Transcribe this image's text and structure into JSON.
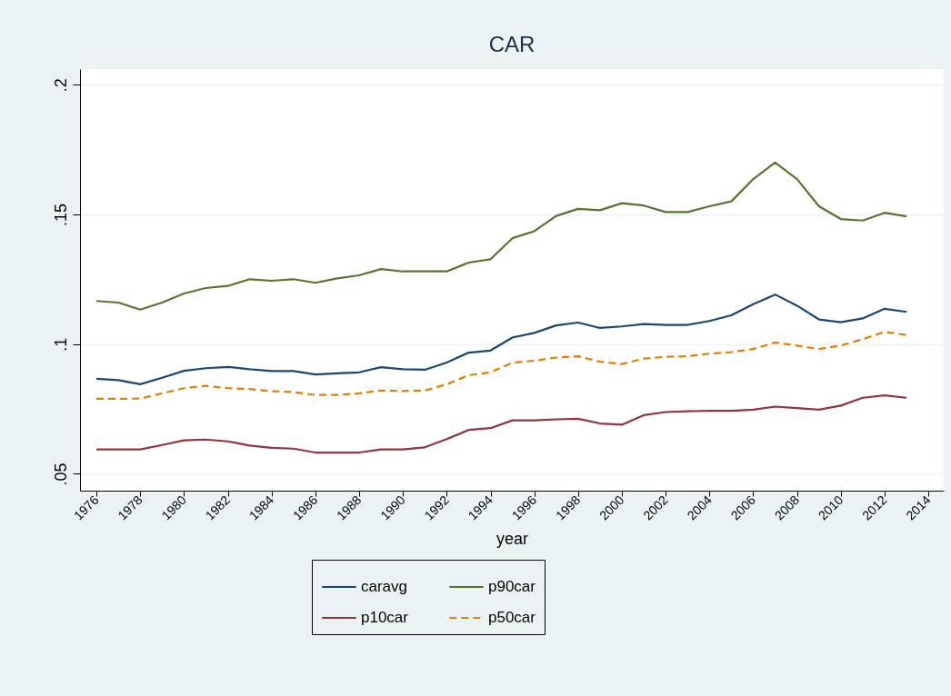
{
  "chart_data": {
    "type": "line",
    "title": "CAR",
    "xlabel": "year",
    "x": [
      1976,
      1977,
      1978,
      1979,
      1980,
      1981,
      1982,
      1983,
      1984,
      1985,
      1986,
      1987,
      1988,
      1989,
      1990,
      1991,
      1992,
      1993,
      1994,
      1995,
      1996,
      1997,
      1998,
      1999,
      2000,
      2001,
      2002,
      2003,
      2004,
      2005,
      2006,
      2007,
      2008,
      2009,
      2010,
      2011,
      2012,
      2013
    ],
    "series": [
      {
        "name": "caravg",
        "color": "#1a476f",
        "values": [
          0.0866,
          0.0861,
          0.0845,
          0.087,
          0.0897,
          0.0907,
          0.0912,
          0.0903,
          0.0896,
          0.0896,
          0.0883,
          0.0887,
          0.0891,
          0.0911,
          0.0903,
          0.0901,
          0.0929,
          0.0967,
          0.0975,
          0.1025,
          0.1043,
          0.1072,
          0.1083,
          0.1062,
          0.1068,
          0.1077,
          0.1074,
          0.1074,
          0.1089,
          0.1111,
          0.1154,
          0.1191,
          0.1148,
          0.1095,
          0.1084,
          0.1099,
          0.1136,
          0.1124
        ]
      },
      {
        "name": "p10car",
        "color": "#90353b",
        "values": [
          0.0594,
          0.0594,
          0.0594,
          0.0611,
          0.0629,
          0.0632,
          0.0625,
          0.0609,
          0.06,
          0.0597,
          0.0582,
          0.0582,
          0.0582,
          0.0594,
          0.0594,
          0.0602,
          0.0634,
          0.0669,
          0.0676,
          0.0706,
          0.0706,
          0.071,
          0.0712,
          0.0694,
          0.0689,
          0.0726,
          0.0738,
          0.0741,
          0.0743,
          0.0743,
          0.0747,
          0.0759,
          0.0753,
          0.0747,
          0.0763,
          0.0793,
          0.0802,
          0.0793
        ]
      },
      {
        "name": "p90car",
        "color": "#55752f",
        "values": [
          0.1166,
          0.116,
          0.1133,
          0.116,
          0.1195,
          0.1216,
          0.1224,
          0.125,
          0.1244,
          0.125,
          0.1236,
          0.1253,
          0.1265,
          0.1289,
          0.128,
          0.128,
          0.128,
          0.1314,
          0.1327,
          0.1408,
          0.1435,
          0.1494,
          0.1521,
          0.1516,
          0.1543,
          0.1534,
          0.1509,
          0.1509,
          0.1531,
          0.155,
          0.1636,
          0.17,
          0.1636,
          0.1531,
          0.1482,
          0.1476,
          0.1506,
          0.1492
        ]
      },
      {
        "name": "p50car",
        "color": "#e37e00",
        "line_style": "dashed",
        "values": [
          0.0789,
          0.0789,
          0.079,
          0.081,
          0.083,
          0.0839,
          0.083,
          0.0827,
          0.0818,
          0.0815,
          0.0804,
          0.0804,
          0.081,
          0.0821,
          0.0819,
          0.0821,
          0.0845,
          0.088,
          0.0891,
          0.0928,
          0.0936,
          0.0948,
          0.0953,
          0.0932,
          0.0923,
          0.0944,
          0.0951,
          0.0953,
          0.0963,
          0.0969,
          0.0981,
          0.1006,
          0.0994,
          0.0981,
          0.0994,
          0.1019,
          0.1047,
          0.1035
        ]
      }
    ],
    "xlim": [
      1975.25,
      2014.7
    ],
    "xticks": [
      1976,
      1978,
      1980,
      1982,
      1984,
      1986,
      1988,
      1990,
      1992,
      1994,
      1996,
      1998,
      2000,
      2002,
      2004,
      2006,
      2008,
      2010,
      2012,
      2014
    ],
    "ylim": [
      0.0435,
      0.206
    ],
    "yticks": [
      {
        "value": 0.05,
        "label": ".05"
      },
      {
        "value": 0.1,
        "label": ".1"
      },
      {
        "value": 0.15,
        "label": ".15"
      },
      {
        "value": 0.2,
        "label": ".2"
      }
    ],
    "grid": "y",
    "legend": "bottom",
    "line_style": "solid"
  }
}
